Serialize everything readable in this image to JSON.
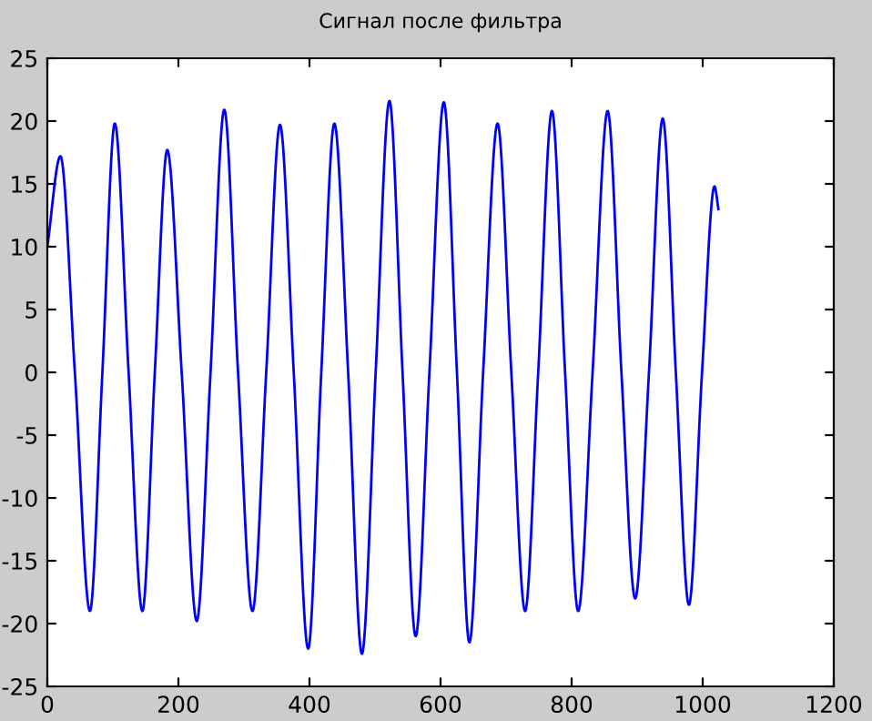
{
  "chart_data": {
    "type": "line",
    "title": "Сигнал после фильтра",
    "x": [
      0,
      20,
      42,
      65,
      84,
      103,
      124,
      145,
      164,
      183,
      205,
      228,
      249,
      270,
      291,
      313,
      334,
      355,
      376,
      398,
      418,
      438,
      459,
      480,
      501,
      522,
      542,
      562,
      583,
      605,
      625,
      644,
      665,
      687,
      708,
      729,
      749,
      770,
      790,
      810,
      832,
      855,
      876,
      897,
      918,
      939,
      959,
      979,
      999,
      1018,
      1024
    ],
    "series": [
      {
        "color": "#0000ff",
        "values": [
          10,
          17.2,
          0,
          -19,
          0,
          19.8,
          0,
          -19,
          0,
          17.7,
          0,
          -19.8,
          0,
          20.9,
          0,
          -19,
          0,
          19.7,
          0,
          -22,
          0,
          19.8,
          0,
          -22.4,
          0,
          21.6,
          0,
          -21,
          0,
          21.5,
          0,
          -21.5,
          0,
          19.8,
          0,
          -19,
          0,
          20.8,
          0,
          -19,
          0,
          20.8,
          0,
          -18,
          0,
          20.2,
          0,
          -18.5,
          0,
          14.8,
          13
        ]
      }
    ],
    "xlim": [
      0,
      1200
    ],
    "xticks": [
      0,
      200,
      400,
      600,
      800,
      1000,
      1200
    ],
    "ylim": [
      -25,
      25
    ],
    "yticks": [
      -25,
      -20,
      -15,
      -10,
      -5,
      0,
      5,
      10,
      15,
      20,
      25
    ],
    "grid": false,
    "legend": false,
    "marker": "none",
    "line_style": "solid"
  }
}
